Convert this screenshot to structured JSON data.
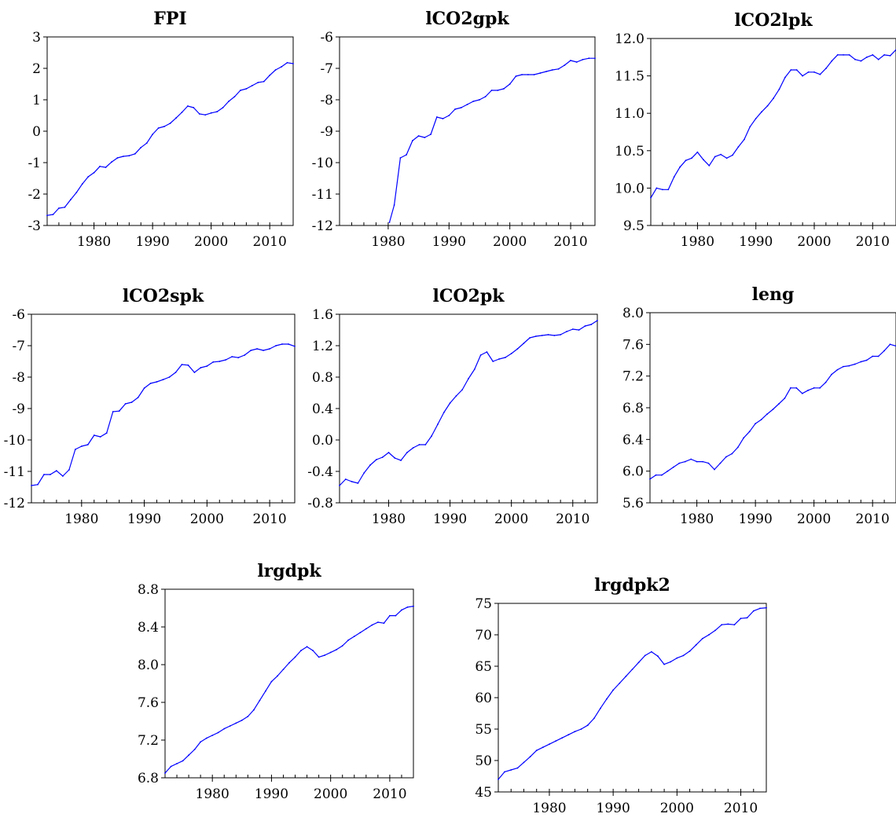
{
  "chart_data": [
    {
      "type": "line",
      "title": "FPI",
      "xlim": [
        1972,
        2014
      ],
      "ylim": [
        -3,
        3
      ],
      "xticks": [
        "1980",
        "1990",
        "2000",
        "2010"
      ],
      "yticks": [
        "-3",
        "-2",
        "-1",
        "0",
        "1",
        "2",
        "3"
      ],
      "series": [
        {
          "color": "#0000ff",
          "x": [
            1972,
            1973,
            1974,
            1975,
            1976,
            1977,
            1978,
            1979,
            1980,
            1981,
            1982,
            1983,
            1984,
            1985,
            1986,
            1987,
            1988,
            1989,
            1990,
            1991,
            1992,
            1993,
            1994,
            1995,
            1996,
            1997,
            1998,
            1999,
            2000,
            2001,
            2002,
            2003,
            2004,
            2005,
            2006,
            2007,
            2008,
            2009,
            2010,
            2011,
            2012,
            2013,
            2014
          ],
          "y": [
            -2.68,
            -2.65,
            -2.45,
            -2.42,
            -2.18,
            -1.95,
            -1.68,
            -1.45,
            -1.32,
            -1.12,
            -1.15,
            -0.98,
            -0.85,
            -0.8,
            -0.78,
            -0.72,
            -0.52,
            -0.38,
            -0.1,
            0.1,
            0.15,
            0.25,
            0.42,
            0.6,
            0.8,
            0.75,
            0.55,
            0.52,
            0.58,
            0.62,
            0.75,
            0.95,
            1.1,
            1.3,
            1.35,
            1.45,
            1.55,
            1.58,
            1.78,
            1.95,
            2.05,
            2.18,
            2.15
          ]
        }
      ]
    },
    {
      "type": "line",
      "title": "lCO2gpk",
      "xlim": [
        1972,
        2014
      ],
      "ylim": [
        -12,
        -6
      ],
      "xticks": [
        "1980",
        "1990",
        "2000",
        "2010"
      ],
      "yticks": [
        "-12",
        "-11",
        "-10",
        "-9",
        "-8",
        "-7",
        "-6"
      ],
      "series": [
        {
          "color": "#0000ff",
          "x": [
            1980.2,
            1981,
            1982,
            1983,
            1984,
            1985,
            1986,
            1987,
            1988,
            1989,
            1990,
            1991,
            1992,
            1993,
            1994,
            1995,
            1996,
            1997,
            1998,
            1999,
            2000,
            2001,
            2002,
            2003,
            2004,
            2005,
            2006,
            2007,
            2008,
            2009,
            2010,
            2011,
            2012,
            2013,
            2014
          ],
          "y": [
            -11.9,
            -11.35,
            -9.85,
            -9.75,
            -9.3,
            -9.15,
            -9.2,
            -9.1,
            -8.55,
            -8.6,
            -8.5,
            -8.3,
            -8.25,
            -8.15,
            -8.05,
            -8.0,
            -7.9,
            -7.7,
            -7.7,
            -7.65,
            -7.5,
            -7.25,
            -7.2,
            -7.2,
            -7.2,
            -7.15,
            -7.1,
            -7.05,
            -7.02,
            -6.9,
            -6.75,
            -6.8,
            -6.72,
            -6.68,
            -6.68
          ]
        }
      ]
    },
    {
      "type": "line",
      "title": "lCO2lpk",
      "xlim": [
        1972,
        2014
      ],
      "ylim": [
        9.5,
        12.0
      ],
      "xticks": [
        "1980",
        "1990",
        "2000",
        "2010"
      ],
      "yticks": [
        "9.5",
        "10.0",
        "10.5",
        "11.0",
        "11.5",
        "12.0"
      ],
      "series": [
        {
          "color": "#0000ff",
          "x": [
            1972,
            1973,
            1974,
            1975,
            1976,
            1977,
            1978,
            1979,
            1980,
            1981,
            1982,
            1983,
            1984,
            1985,
            1986,
            1987,
            1988,
            1989,
            1990,
            1991,
            1992,
            1993,
            1994,
            1995,
            1996,
            1997,
            1998,
            1999,
            2000,
            2001,
            2002,
            2003,
            2004,
            2005,
            2006,
            2007,
            2008,
            2009,
            2010,
            2011,
            2012,
            2013,
            2014
          ],
          "y": [
            9.87,
            10.0,
            9.98,
            9.98,
            10.15,
            10.28,
            10.37,
            10.4,
            10.48,
            10.38,
            10.3,
            10.42,
            10.45,
            10.4,
            10.44,
            10.55,
            10.65,
            10.82,
            10.93,
            11.02,
            11.1,
            11.2,
            11.32,
            11.48,
            11.58,
            11.58,
            11.5,
            11.55,
            11.55,
            11.52,
            11.6,
            11.7,
            11.78,
            11.78,
            11.78,
            11.72,
            11.7,
            11.75,
            11.78,
            11.72,
            11.78,
            11.77,
            11.85
          ]
        }
      ]
    },
    {
      "type": "line",
      "title": "lCO2spk",
      "xlim": [
        1972,
        2014
      ],
      "ylim": [
        -12,
        -6
      ],
      "xticks": [
        "1980",
        "1990",
        "2000",
        "2010"
      ],
      "yticks": [
        "-12",
        "-11",
        "-10",
        "-9",
        "-8",
        "-7",
        "-6"
      ],
      "series": [
        {
          "color": "#0000ff",
          "x": [
            1972,
            1973,
            1974,
            1975,
            1976,
            1977,
            1978,
            1979,
            1980,
            1981,
            1982,
            1983,
            1984,
            1985,
            1986,
            1987,
            1988,
            1989,
            1990,
            1991,
            1992,
            1993,
            1994,
            1995,
            1996,
            1997,
            1998,
            1999,
            2000,
            2001,
            2002,
            2003,
            2004,
            2005,
            2006,
            2007,
            2008,
            2009,
            2010,
            2011,
            2012,
            2013,
            2014
          ],
          "y": [
            -11.45,
            -11.42,
            -11.1,
            -11.1,
            -10.98,
            -11.15,
            -10.95,
            -10.3,
            -10.2,
            -10.15,
            -9.85,
            -9.9,
            -9.78,
            -9.1,
            -9.08,
            -8.85,
            -8.8,
            -8.65,
            -8.35,
            -8.2,
            -8.15,
            -8.08,
            -8.0,
            -7.85,
            -7.6,
            -7.62,
            -7.85,
            -7.7,
            -7.65,
            -7.52,
            -7.5,
            -7.45,
            -7.35,
            -7.38,
            -7.3,
            -7.15,
            -7.1,
            -7.15,
            -7.1,
            -7.0,
            -6.95,
            -6.95,
            -7.02
          ]
        }
      ]
    },
    {
      "type": "line",
      "title": "lCO2pk",
      "xlim": [
        1972,
        2014
      ],
      "ylim": [
        -0.8,
        1.6
      ],
      "xticks": [
        "1980",
        "1990",
        "2000",
        "2010"
      ],
      "yticks": [
        "-0.8",
        "-0.4",
        "0.0",
        "0.4",
        "0.8",
        "1.2",
        "1.6"
      ],
      "series": [
        {
          "color": "#0000ff",
          "x": [
            1972,
            1973,
            1974,
            1975,
            1976,
            1977,
            1978,
            1979,
            1980,
            1981,
            1982,
            1983,
            1984,
            1985,
            1986,
            1987,
            1988,
            1989,
            1990,
            1991,
            1992,
            1993,
            1994,
            1995,
            1996,
            1997,
            1998,
            1999,
            2000,
            2001,
            2002,
            2003,
            2004,
            2005,
            2006,
            2007,
            2008,
            2009,
            2010,
            2011,
            2012,
            2013,
            2014
          ],
          "y": [
            -0.58,
            -0.5,
            -0.53,
            -0.55,
            -0.42,
            -0.32,
            -0.25,
            -0.22,
            -0.16,
            -0.23,
            -0.26,
            -0.16,
            -0.1,
            -0.06,
            -0.06,
            0.05,
            0.2,
            0.35,
            0.47,
            0.56,
            0.64,
            0.78,
            0.9,
            1.08,
            1.12,
            1.0,
            1.03,
            1.05,
            1.1,
            1.16,
            1.23,
            1.3,
            1.32,
            1.33,
            1.34,
            1.33,
            1.34,
            1.38,
            1.41,
            1.4,
            1.45,
            1.47,
            1.52
          ]
        }
      ]
    },
    {
      "type": "line",
      "title": "leng",
      "xlim": [
        1972,
        2014
      ],
      "ylim": [
        5.6,
        8.0
      ],
      "xticks": [
        "1980",
        "1990",
        "2000",
        "2010"
      ],
      "yticks": [
        "5.6",
        "6.0",
        "6.4",
        "6.8",
        "7.2",
        "7.6",
        "8.0"
      ],
      "series": [
        {
          "color": "#0000ff",
          "x": [
            1972,
            1973,
            1974,
            1975,
            1976,
            1977,
            1978,
            1979,
            1980,
            1981,
            1982,
            1983,
            1984,
            1985,
            1986,
            1987,
            1988,
            1989,
            1990,
            1991,
            1992,
            1993,
            1994,
            1995,
            1996,
            1997,
            1998,
            1999,
            2000,
            2001,
            2002,
            2003,
            2004,
            2005,
            2006,
            2007,
            2008,
            2009,
            2010,
            2011,
            2012,
            2013,
            2014
          ],
          "y": [
            5.9,
            5.95,
            5.95,
            6.0,
            6.05,
            6.1,
            6.12,
            6.15,
            6.12,
            6.12,
            6.1,
            6.02,
            6.1,
            6.18,
            6.22,
            6.3,
            6.42,
            6.5,
            6.6,
            6.65,
            6.72,
            6.78,
            6.85,
            6.92,
            7.05,
            7.05,
            6.98,
            7.02,
            7.05,
            7.05,
            7.12,
            7.22,
            7.28,
            7.32,
            7.33,
            7.35,
            7.38,
            7.4,
            7.45,
            7.45,
            7.52,
            7.6,
            7.58
          ]
        }
      ]
    },
    {
      "type": "line",
      "title": "lrgdpk",
      "xlim": [
        1972,
        2014
      ],
      "ylim": [
        6.8,
        8.8
      ],
      "xticks": [
        "1980",
        "1990",
        "2000",
        "2010"
      ],
      "yticks": [
        "6.8",
        "7.2",
        "7.6",
        "8.0",
        "8.4",
        "8.8"
      ],
      "series": [
        {
          "color": "#0000ff",
          "x": [
            1972,
            1973,
            1974,
            1975,
            1976,
            1977,
            1978,
            1979,
            1980,
            1981,
            1982,
            1983,
            1984,
            1985,
            1986,
            1987,
            1988,
            1989,
            1990,
            1991,
            1992,
            1993,
            1994,
            1995,
            1996,
            1997,
            1998,
            1999,
            2000,
            2001,
            2002,
            2003,
            2004,
            2005,
            2006,
            2007,
            2008,
            2009,
            2010,
            2011,
            2012,
            2013,
            2014
          ],
          "y": [
            6.85,
            6.92,
            6.95,
            6.98,
            7.04,
            7.1,
            7.18,
            7.22,
            7.25,
            7.28,
            7.32,
            7.35,
            7.38,
            7.41,
            7.45,
            7.52,
            7.62,
            7.72,
            7.82,
            7.88,
            7.95,
            8.02,
            8.08,
            8.15,
            8.19,
            8.15,
            8.08,
            8.1,
            8.13,
            8.16,
            8.2,
            8.26,
            8.3,
            8.34,
            8.38,
            8.42,
            8.45,
            8.44,
            8.52,
            8.52,
            8.58,
            8.61,
            8.62
          ]
        }
      ]
    },
    {
      "type": "line",
      "title": "lrgdpk2",
      "xlim": [
        1972,
        2014
      ],
      "ylim": [
        45,
        75
      ],
      "xticks": [
        "1980",
        "1990",
        "2000",
        "2010"
      ],
      "yticks": [
        "45",
        "50",
        "55",
        "60",
        "65",
        "70",
        "75"
      ],
      "series": [
        {
          "color": "#0000ff",
          "x": [
            1972,
            1973,
            1974,
            1975,
            1976,
            1977,
            1978,
            1979,
            1980,
            1981,
            1982,
            1983,
            1984,
            1985,
            1986,
            1987,
            1988,
            1989,
            1990,
            1991,
            1992,
            1993,
            1994,
            1995,
            1996,
            1997,
            1998,
            1999,
            2000,
            2001,
            2002,
            2003,
            2004,
            2005,
            2006,
            2007,
            2008,
            2009,
            2010,
            2011,
            2012,
            2013,
            2014
          ],
          "y": [
            47.0,
            48.2,
            48.5,
            48.8,
            49.7,
            50.6,
            51.6,
            52.1,
            52.6,
            53.1,
            53.6,
            54.1,
            54.6,
            55.0,
            55.6,
            56.7,
            58.3,
            59.8,
            61.2,
            62.3,
            63.4,
            64.5,
            65.6,
            66.7,
            67.3,
            66.6,
            65.3,
            65.7,
            66.3,
            66.7,
            67.4,
            68.4,
            69.4,
            70.0,
            70.7,
            71.6,
            71.7,
            71.6,
            72.6,
            72.7,
            73.8,
            74.2,
            74.3
          ]
        }
      ]
    }
  ]
}
